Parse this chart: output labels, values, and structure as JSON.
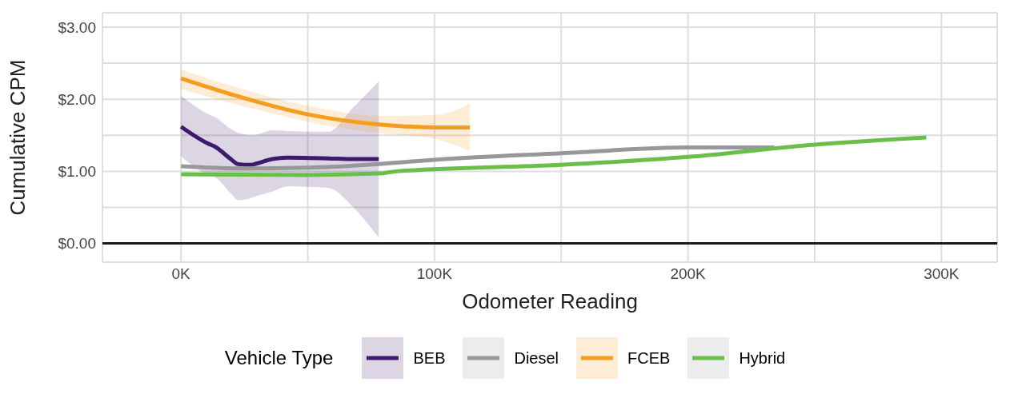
{
  "chart_data": {
    "type": "line",
    "xlabel": "Odometer Reading",
    "ylabel": "Cumulative CPM",
    "legend_title": "Vehicle Type",
    "legend": "bottom",
    "grid": true,
    "xlim": [
      -31000,
      322000
    ],
    "ylim": [
      -0.26,
      3.2
    ],
    "xticks": [
      {
        "value": 0,
        "label": "0K"
      },
      {
        "value": 50000,
        "label": null
      },
      {
        "value": 100000,
        "label": "100K"
      },
      {
        "value": 150000,
        "label": null
      },
      {
        "value": 200000,
        "label": "200K"
      },
      {
        "value": 250000,
        "label": null
      },
      {
        "value": 300000,
        "label": "300K"
      }
    ],
    "yticks": [
      {
        "value": 0,
        "label": "$0.00"
      },
      {
        "value": 0.5,
        "label": null
      },
      {
        "value": 1,
        "label": "$1.00"
      },
      {
        "value": 1.5,
        "label": null
      },
      {
        "value": 2,
        "label": "$2.00"
      },
      {
        "value": 2.5,
        "label": null
      },
      {
        "value": 3,
        "label": "$3.00"
      }
    ],
    "ref_lines": [
      {
        "axis": "y",
        "value": 0,
        "color": "#1a1a1a"
      }
    ],
    "series": [
      {
        "name": "BEB",
        "color": "#3e1a6c",
        "x": [
          0,
          11000,
          13000,
          20000,
          22500,
          27700,
          30000,
          36000,
          42000,
          58000,
          68000,
          78000
        ],
        "values": [
          1.62,
          1.38,
          1.35,
          1.16,
          1.1,
          1.09,
          1.11,
          1.17,
          1.19,
          1.18,
          1.17,
          1.17
        ],
        "lower": [
          1.21,
          0.95,
          0.93,
          0.68,
          0.6,
          0.63,
          0.66,
          0.72,
          0.79,
          0.77,
          0.5,
          0.08
        ],
        "upper": [
          2.05,
          1.79,
          1.76,
          1.58,
          1.54,
          1.5,
          1.51,
          1.57,
          1.56,
          1.55,
          1.89,
          2.25
        ]
      },
      {
        "name": "Diesel",
        "color": "#98989c",
        "x": [
          0,
          25000,
          50000,
          78000,
          85000,
          100000,
          150000,
          200000,
          234000
        ],
        "values": [
          1.07,
          1.04,
          1.05,
          1.1,
          1.12,
          1.16,
          1.25,
          1.33,
          1.33
        ]
      },
      {
        "name": "FCEB",
        "color": "#f59d1f",
        "x": [
          0,
          21500,
          50000,
          78000,
          100000,
          114000
        ],
        "values": [
          2.29,
          2.05,
          1.79,
          1.65,
          1.61,
          1.61
        ],
        "lower": [
          2.14,
          1.93,
          1.69,
          1.53,
          1.45,
          1.28
        ],
        "upper": [
          2.41,
          2.17,
          1.91,
          1.77,
          1.78,
          1.94
        ]
      },
      {
        "name": "Hybrid",
        "color": "#6abf4b",
        "x": [
          0,
          50000,
          78000,
          85000,
          150000,
          200000,
          250000,
          294000
        ],
        "values": [
          0.96,
          0.95,
          0.97,
          1.0,
          1.09,
          1.2,
          1.37,
          1.47
        ]
      }
    ]
  }
}
